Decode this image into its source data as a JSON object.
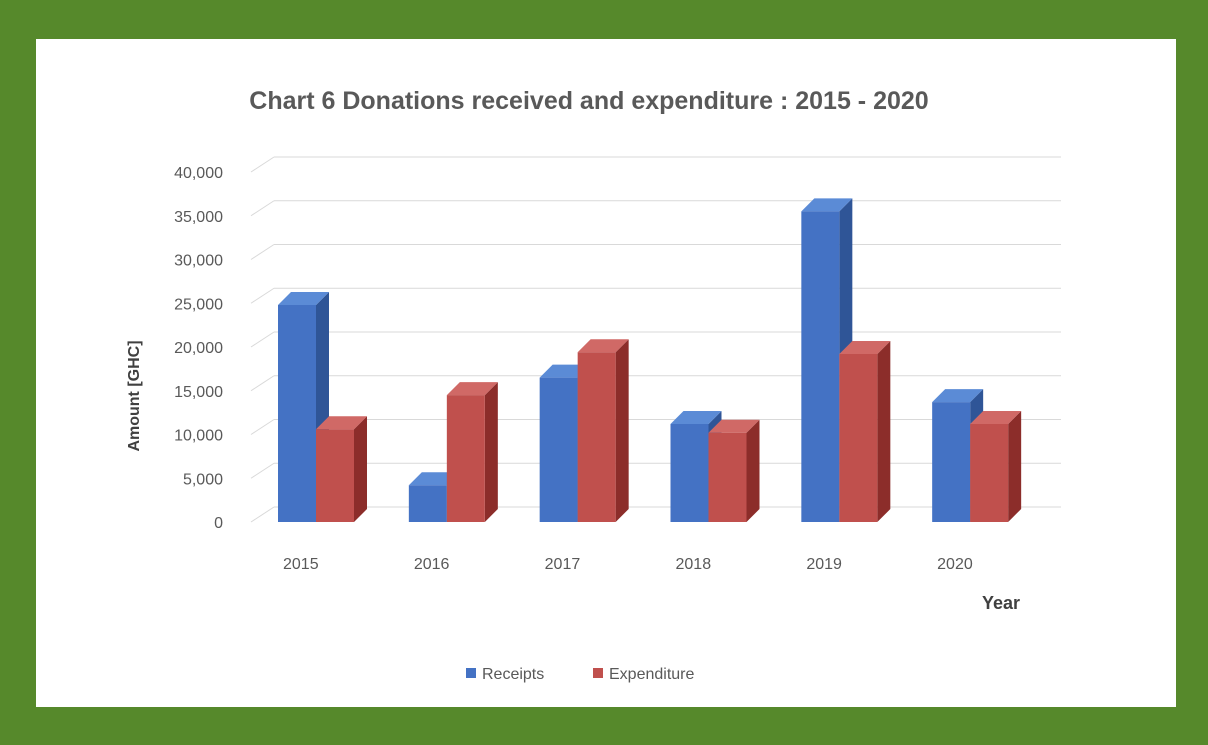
{
  "chart_data": {
    "type": "bar",
    "title": "Chart 6 Donations received and expenditure : 2015 - 2020",
    "xlabel": "Year",
    "ylabel": "Amount [GHC]",
    "categories": [
      "2015",
      "2016",
      "2017",
      "2018",
      "2019",
      "2020"
    ],
    "series": [
      {
        "name": "Receipts",
        "values": [
          24800,
          4200,
          16500,
          11200,
          35500,
          13700
        ],
        "color": "#4472c4"
      },
      {
        "name": "Expenditure",
        "values": [
          10600,
          14500,
          19400,
          10200,
          19200,
          11200
        ],
        "color": "#c0504d"
      }
    ],
    "ylim": [
      0,
      40000
    ],
    "yticks": [
      "0",
      "5,000",
      "10,000",
      "15,000",
      "20,000",
      "25,000",
      "30,000",
      "35,000",
      "40,000"
    ],
    "ytick_values": [
      0,
      5000,
      10000,
      15000,
      20000,
      25000,
      30000,
      35000,
      40000
    ],
    "grid": true,
    "style": "3d-clustered-column",
    "legend_position": "bottom"
  },
  "colors": {
    "page_border": "#56892b",
    "gridline": "#d9d9d9",
    "receipts": "#4472c4",
    "receipts_side": "#2f5597",
    "receipts_top": "#5b8bd6",
    "expenditure": "#c0504d",
    "expenditure_side": "#8c2d2a",
    "expenditure_top": "#d06966"
  }
}
